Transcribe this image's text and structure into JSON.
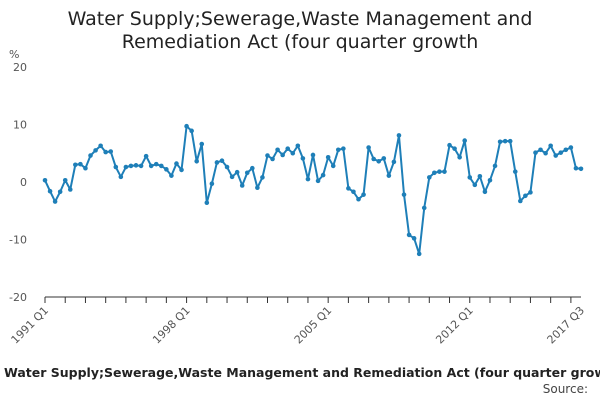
{
  "chart_data": {
    "type": "line",
    "title_line1": "Water Supply;Sewerage,Waste Management and",
    "title_line2": "Remediation Act (four quarter growth",
    "unit": "%",
    "ylim": [
      -20,
      20
    ],
    "yticks": [
      20,
      10,
      0,
      -10,
      -20
    ],
    "x_start": "1991 Q1",
    "x_end": "2017 Q3",
    "xtick_labels": [
      "1991 Q1",
      "1998 Q1",
      "2005 Q1",
      "2012 Q1",
      "2017 Q3"
    ],
    "xtick_index": [
      0,
      28,
      56,
      84,
      106
    ],
    "grid": false,
    "legend": "none",
    "color": "#1e7fb8",
    "series": [
      {
        "values": [
          0.3,
          -1.6,
          -3.4,
          -1.7,
          0.3,
          -1.3,
          3.0,
          3.1,
          2.4,
          4.6,
          5.5,
          6.3,
          5.2,
          5.3,
          2.6,
          0.9,
          2.6,
          2.8,
          2.9,
          2.8,
          4.5,
          2.8,
          3.1,
          2.8,
          2.2,
          1.1,
          3.2,
          2.1,
          9.7,
          8.9,
          3.6,
          6.6,
          -3.6,
          -0.3,
          3.4,
          3.7,
          2.6,
          0.9,
          1.7,
          -0.6,
          1.6,
          2.4,
          -1.0,
          0.8,
          4.6,
          4.0,
          5.6,
          4.7,
          5.8,
          5.0,
          6.3,
          4.1,
          0.5,
          4.7,
          0.2,
          1.2,
          4.3,
          2.8,
          5.6,
          5.8,
          -1.1,
          -1.7,
          -3.0,
          -2.2,
          6.0,
          4.0,
          3.6,
          4.1,
          1.1,
          3.5,
          8.1,
          -2.2,
          -9.2,
          -9.8,
          -12.5,
          -4.5,
          0.8,
          1.6,
          1.8,
          1.8,
          6.4,
          5.8,
          4.3,
          7.2,
          0.8,
          -0.5,
          1.0,
          -1.7,
          0.3,
          2.8,
          7.0,
          7.1,
          7.1,
          1.8,
          -3.3,
          -2.4,
          -1.8,
          5.1,
          5.6,
          5.0,
          6.3,
          4.6,
          5.1,
          5.6,
          6.0,
          2.4,
          2.3
        ]
      }
    ],
    "caption": "Water Supply;Sewerage,Waste Management and Remediation Act (four quarter growth",
    "source": "Source:"
  }
}
